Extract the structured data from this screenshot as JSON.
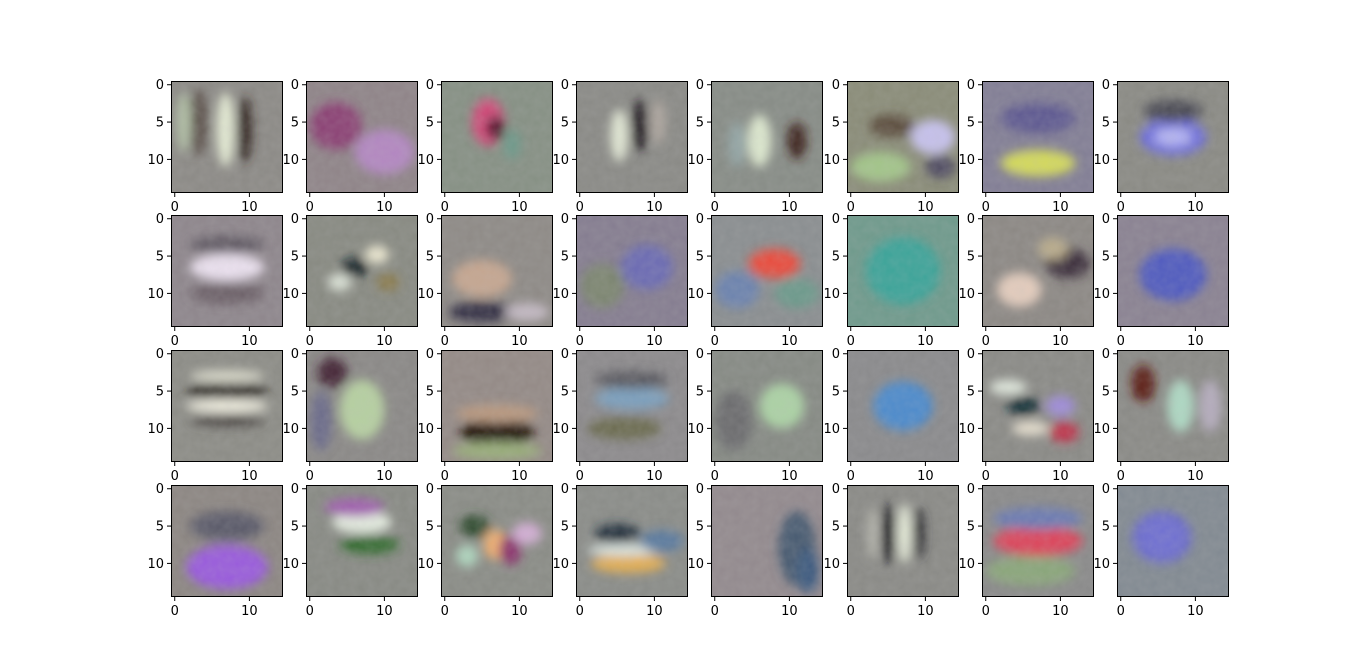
{
  "chart_data": {
    "type": "heatmap",
    "title": "",
    "xlabel": "",
    "ylabel": "",
    "grid": false,
    "layout": {
      "rows": 4,
      "cols": 8
    },
    "image_size": [
      15,
      15
    ],
    "xlim": [
      -0.5,
      14.5
    ],
    "ylim": [
      14.5,
      -0.5
    ],
    "x_ticks": [
      {
        "value": 0,
        "label": "0"
      },
      {
        "value": 10,
        "label": "10"
      }
    ],
    "y_ticks": [
      {
        "value": 0,
        "label": "0"
      },
      {
        "value": 5,
        "label": "5"
      },
      {
        "value": 10,
        "label": "10"
      }
    ],
    "colors": {
      "neutral_gray": "#8a8a8a",
      "axis": "#000000"
    },
    "panels": [
      {
        "row": 0,
        "col": 0,
        "bg": "#8c8a86",
        "blobs": [
          {
            "x": 6.8,
            "y": 6,
            "rx": 1.2,
            "ry": 5,
            "color": "#e9f0d8"
          },
          {
            "x": 9.4,
            "y": 6,
            "rx": 1.0,
            "ry": 4.5,
            "color": "#2e221e"
          },
          {
            "x": 3.2,
            "y": 5,
            "rx": 1.2,
            "ry": 4.5,
            "color": "#5b4f4a"
          },
          {
            "x": 1.2,
            "y": 5,
            "rx": 1,
            "ry": 4,
            "color": "#b3c2a6"
          }
        ]
      },
      {
        "row": 0,
        "col": 1,
        "bg": "#8f8488",
        "blobs": [
          {
            "x": 3.5,
            "y": 5.5,
            "rx": 3.5,
            "ry": 3.2,
            "color": "#8b3f74"
          },
          {
            "x": 10,
            "y": 9,
            "rx": 4,
            "ry": 3,
            "color": "#b488c4"
          }
        ]
      },
      {
        "row": 0,
        "col": 2,
        "bg": "#869084",
        "blobs": [
          {
            "x": 5.8,
            "y": 5,
            "rx": 2.2,
            "ry": 3.2,
            "color": "#d34a78"
          },
          {
            "x": 6.8,
            "y": 5.8,
            "rx": 1.2,
            "ry": 1.6,
            "color": "#4a0f24"
          },
          {
            "x": 9,
            "y": 8,
            "rx": 1.2,
            "ry": 2,
            "color": "#6d9a8a"
          }
        ]
      },
      {
        "row": 0,
        "col": 3,
        "bg": "#8a8a86",
        "blobs": [
          {
            "x": 8,
            "y": 5.5,
            "rx": 1.1,
            "ry": 3.5,
            "color": "#1f1420"
          },
          {
            "x": 5.3,
            "y": 6.8,
            "rx": 1.2,
            "ry": 3.5,
            "color": "#e6ecd8"
          },
          {
            "x": 10.5,
            "y": 5,
            "rx": 1,
            "ry": 3,
            "color": "#b0a8a0"
          }
        ]
      },
      {
        "row": 0,
        "col": 4,
        "bg": "#878c86",
        "blobs": [
          {
            "x": 6,
            "y": 7.5,
            "rx": 1.6,
            "ry": 3.5,
            "color": "#e0ecd2"
          },
          {
            "x": 11,
            "y": 7.5,
            "rx": 1.3,
            "ry": 2.5,
            "color": "#3a1a14"
          },
          {
            "x": 3,
            "y": 8,
            "rx": 1.2,
            "ry": 3,
            "color": "#94a6a6"
          }
        ]
      },
      {
        "row": 0,
        "col": 5,
        "bg": "#8a8c78",
        "blobs": [
          {
            "x": 11,
            "y": 7,
            "rx": 3,
            "ry": 2.3,
            "color": "#c9c4f2"
          },
          {
            "x": 5.5,
            "y": 5.5,
            "rx": 3,
            "ry": 1.5,
            "color": "#5a4a3a"
          },
          {
            "x": 4,
            "y": 11,
            "rx": 4,
            "ry": 2,
            "color": "#a4c88a"
          },
          {
            "x": 12,
            "y": 11,
            "rx": 2,
            "ry": 1.5,
            "color": "#4b4660"
          }
        ]
      },
      {
        "row": 0,
        "col": 6,
        "bg": "#827e95",
        "blobs": [
          {
            "x": 7,
            "y": 10.5,
            "rx": 5,
            "ry": 1.8,
            "color": "#d8de5a"
          },
          {
            "x": 7,
            "y": 4.5,
            "rx": 5,
            "ry": 2,
            "color": "#5d5690"
          }
        ]
      },
      {
        "row": 0,
        "col": 7,
        "bg": "#8a8a84",
        "blobs": [
          {
            "x": 7,
            "y": 7,
            "rx": 4.5,
            "ry": 2.5,
            "color": "#6e6ee0"
          },
          {
            "x": 7,
            "y": 7,
            "rx": 2.5,
            "ry": 1.2,
            "color": "#b8b8f4"
          },
          {
            "x": 7,
            "y": 3.5,
            "rx": 4,
            "ry": 1.5,
            "color": "#4a4a52"
          }
        ]
      },
      {
        "row": 1,
        "col": 0,
        "bg": "#8e868c",
        "blobs": [
          {
            "x": 7,
            "y": 6.5,
            "rx": 5,
            "ry": 1.8,
            "color": "#f0e6f4"
          },
          {
            "x": 7,
            "y": 3.5,
            "rx": 5,
            "ry": 1.2,
            "color": "#5f5a62"
          },
          {
            "x": 7,
            "y": 10,
            "rx": 5,
            "ry": 1.4,
            "color": "#6a5e66"
          }
        ]
      },
      {
        "row": 1,
        "col": 1,
        "bg": "#888a82",
        "blobs": [
          {
            "x": 6,
            "y": 6.5,
            "rx": 1.8,
            "ry": 1.3,
            "color": "#0d1a22"
          },
          {
            "x": 9,
            "y": 4.8,
            "rx": 1.6,
            "ry": 1.2,
            "color": "#f0ecd4"
          },
          {
            "x": 4,
            "y": 8.5,
            "rx": 1.6,
            "ry": 1.2,
            "color": "#dce4d8"
          },
          {
            "x": 10.5,
            "y": 8.5,
            "rx": 1.5,
            "ry": 1.2,
            "color": "#8a7a48"
          }
        ]
      },
      {
        "row": 1,
        "col": 2,
        "bg": "#8e8a86",
        "blobs": [
          {
            "x": 5,
            "y": 12.5,
            "rx": 4.5,
            "ry": 1.4,
            "color": "#2e2a40"
          },
          {
            "x": 5,
            "y": 8,
            "rx": 4,
            "ry": 2.5,
            "color": "#c8a890"
          },
          {
            "x": 11,
            "y": 12.5,
            "rx": 3,
            "ry": 1.2,
            "color": "#c6bcc6"
          }
        ]
      },
      {
        "row": 1,
        "col": 3,
        "bg": "#857d90",
        "blobs": [
          {
            "x": 9,
            "y": 6.5,
            "rx": 3.5,
            "ry": 3,
            "color": "#6a6ab4"
          },
          {
            "x": 3,
            "y": 9,
            "rx": 3,
            "ry": 3,
            "color": "#7c8670"
          }
        ]
      },
      {
        "row": 1,
        "col": 4,
        "bg": "#8a8e90",
        "blobs": [
          {
            "x": 8,
            "y": 6,
            "rx": 3.5,
            "ry": 2,
            "color": "#ee4a3a"
          },
          {
            "x": 3,
            "y": 9.5,
            "rx": 3,
            "ry": 2.5,
            "color": "#6a82b0"
          },
          {
            "x": 11,
            "y": 10,
            "rx": 3,
            "ry": 2,
            "color": "#6a9a8a"
          }
        ]
      },
      {
        "row": 1,
        "col": 5,
        "bg": "#6f9a8c",
        "blobs": [
          {
            "x": 7,
            "y": 7,
            "rx": 5,
            "ry": 4.5,
            "color": "#3aa49a"
          }
        ]
      },
      {
        "row": 1,
        "col": 6,
        "bg": "#8c8884",
        "blobs": [
          {
            "x": 4.5,
            "y": 9.5,
            "rx": 3,
            "ry": 2.3,
            "color": "#e8d0c0"
          },
          {
            "x": 11,
            "y": 6,
            "rx": 3,
            "ry": 2,
            "color": "#3a2a3a"
          },
          {
            "x": 9,
            "y": 4,
            "rx": 2,
            "ry": 1.5,
            "color": "#bcae8c"
          }
        ]
      },
      {
        "row": 1,
        "col": 7,
        "bg": "#8a8292",
        "blobs": [
          {
            "x": 7,
            "y": 7.5,
            "rx": 4.5,
            "ry": 3.5,
            "color": "#4e5ac2"
          }
        ]
      },
      {
        "row": 2,
        "col": 0,
        "bg": "#8c8c86",
        "blobs": [
          {
            "x": 7,
            "y": 5,
            "rx": 5.5,
            "ry": 1,
            "color": "#1a140e"
          },
          {
            "x": 7,
            "y": 7,
            "rx": 5.5,
            "ry": 0.9,
            "color": "#f4f2e4"
          },
          {
            "x": 7,
            "y": 3,
            "rx": 5,
            "ry": 0.8,
            "color": "#dcdccc"
          },
          {
            "x": 7,
            "y": 9,
            "rx": 5,
            "ry": 0.8,
            "color": "#4a4440"
          }
        ]
      },
      {
        "row": 2,
        "col": 1,
        "bg": "#8a8886",
        "blobs": [
          {
            "x": 3,
            "y": 2.5,
            "rx": 2,
            "ry": 2,
            "color": "#3e1e30"
          },
          {
            "x": 7,
            "y": 7.5,
            "rx": 3,
            "ry": 4,
            "color": "#b8d4a2"
          },
          {
            "x": 1.5,
            "y": 9,
            "rx": 1.5,
            "ry": 4,
            "color": "#6a6a8a"
          }
        ]
      },
      {
        "row": 2,
        "col": 2,
        "bg": "#948a86",
        "blobs": [
          {
            "x": 7,
            "y": 10.5,
            "rx": 5,
            "ry": 1.8,
            "color": "#1a0e06"
          },
          {
            "x": 7,
            "y": 8,
            "rx": 5.5,
            "ry": 1.2,
            "color": "#bc9a80"
          },
          {
            "x": 7,
            "y": 13,
            "rx": 6,
            "ry": 1.2,
            "color": "#9ab07a"
          }
        ]
      },
      {
        "row": 2,
        "col": 3,
        "bg": "#8c8a8c",
        "blobs": [
          {
            "x": 7,
            "y": 6,
            "rx": 5,
            "ry": 1.5,
            "color": "#7aa0c0"
          },
          {
            "x": 7,
            "y": 3.5,
            "rx": 5,
            "ry": 1.2,
            "color": "#5a5a60"
          },
          {
            "x": 6,
            "y": 10,
            "rx": 5,
            "ry": 1.5,
            "color": "#6a6a4e"
          }
        ]
      },
      {
        "row": 2,
        "col": 4,
        "bg": "#868a84",
        "blobs": [
          {
            "x": 9,
            "y": 7,
            "rx": 3,
            "ry": 3,
            "color": "#aed6a6"
          },
          {
            "x": 2.5,
            "y": 9,
            "rx": 2.5,
            "ry": 4,
            "color": "#6a6a6e"
          }
        ]
      },
      {
        "row": 2,
        "col": 5,
        "bg": "#8a8a8c",
        "blobs": [
          {
            "x": 7,
            "y": 7,
            "rx": 4,
            "ry": 3.3,
            "color": "#4a8ad0"
          }
        ]
      },
      {
        "row": 2,
        "col": 6,
        "bg": "#8a8a86",
        "blobs": [
          {
            "x": 5,
            "y": 7,
            "rx": 2.2,
            "ry": 1.3,
            "color": "#0a2a34"
          },
          {
            "x": 3,
            "y": 4.5,
            "rx": 2.5,
            "ry": 1,
            "color": "#e4ece0"
          },
          {
            "x": 10.5,
            "y": 10.5,
            "rx": 2,
            "ry": 1.4,
            "color": "#c2304a"
          },
          {
            "x": 10,
            "y": 7,
            "rx": 2,
            "ry": 1.4,
            "color": "#a08cdc"
          },
          {
            "x": 6,
            "y": 10,
            "rx": 2.5,
            "ry": 1,
            "color": "#e8e0d0"
          }
        ]
      },
      {
        "row": 2,
        "col": 7,
        "bg": "#8a8a86",
        "blobs": [
          {
            "x": 3,
            "y": 4,
            "rx": 1.6,
            "ry": 2.5,
            "color": "#5a1408"
          },
          {
            "x": 8,
            "y": 7,
            "rx": 1.8,
            "ry": 3.5,
            "color": "#b0dcc6"
          },
          {
            "x": 12,
            "y": 7,
            "rx": 1.5,
            "ry": 3.5,
            "color": "#b6aec0"
          }
        ]
      },
      {
        "row": 3,
        "col": 0,
        "bg": "#8c8682",
        "blobs": [
          {
            "x": 7,
            "y": 10.5,
            "rx": 5.5,
            "ry": 3,
            "color": "#9a5ae0"
          },
          {
            "x": 7,
            "y": 5,
            "rx": 5,
            "ry": 2,
            "color": "#5a5868"
          }
        ]
      },
      {
        "row": 3,
        "col": 1,
        "bg": "#888a84",
        "blobs": [
          {
            "x": 7,
            "y": 4.5,
            "rx": 4,
            "ry": 1.5,
            "color": "#e8f0e4"
          },
          {
            "x": 6,
            "y": 2.5,
            "rx": 4,
            "ry": 1.2,
            "color": "#a05ab0"
          },
          {
            "x": 8,
            "y": 7.5,
            "rx": 4,
            "ry": 1.3,
            "color": "#2e6a2a"
          }
        ]
      },
      {
        "row": 3,
        "col": 2,
        "bg": "#8a8c86",
        "blobs": [
          {
            "x": 6.8,
            "y": 7.5,
            "rx": 1.6,
            "ry": 2,
            "color": "#f4b070"
          },
          {
            "x": 8.8,
            "y": 8.2,
            "rx": 1.5,
            "ry": 2,
            "color": "#8a2a6a"
          },
          {
            "x": 4,
            "y": 5,
            "rx": 2,
            "ry": 1.5,
            "color": "#2a4a2a"
          },
          {
            "x": 11,
            "y": 6,
            "rx": 2,
            "ry": 1.5,
            "color": "#d6b0d8"
          },
          {
            "x": 3,
            "y": 9,
            "rx": 1.5,
            "ry": 1.5,
            "color": "#b0d8c0"
          }
        ]
      },
      {
        "row": 3,
        "col": 3,
        "bg": "#8a8c88",
        "blobs": [
          {
            "x": 6.5,
            "y": 10,
            "rx": 5,
            "ry": 1.3,
            "color": "#e8b050"
          },
          {
            "x": 5,
            "y": 6,
            "rx": 3,
            "ry": 1.3,
            "color": "#1a2a3a"
          },
          {
            "x": 6,
            "y": 8.2,
            "rx": 5,
            "ry": 0.8,
            "color": "#dce8e4"
          },
          {
            "x": 11,
            "y": 7,
            "rx": 3,
            "ry": 1.5,
            "color": "#5a7aa0"
          }
        ]
      },
      {
        "row": 3,
        "col": 4,
        "bg": "#938a8e",
        "blobs": [
          {
            "x": 11,
            "y": 8,
            "rx": 2.5,
            "ry": 5,
            "color": "#445a70"
          },
          {
            "x": 12.5,
            "y": 11,
            "rx": 1.5,
            "ry": 3,
            "color": "#3a5a80"
          }
        ]
      },
      {
        "row": 3,
        "col": 5,
        "bg": "#8a8a86",
        "blobs": [
          {
            "x": 5,
            "y": 6,
            "rx": 0.9,
            "ry": 4,
            "color": "#0e0a16"
          },
          {
            "x": 7.2,
            "y": 6,
            "rx": 0.9,
            "ry": 4,
            "color": "#eef4e0"
          },
          {
            "x": 9.2,
            "y": 6,
            "rx": 0.8,
            "ry": 3.5,
            "color": "#2a2a2e"
          },
          {
            "x": 3,
            "y": 6,
            "rx": 0.8,
            "ry": 3.5,
            "color": "#b6b6ae"
          }
        ]
      },
      {
        "row": 3,
        "col": 6,
        "bg": "#8a8a8a",
        "blobs": [
          {
            "x": 7,
            "y": 7,
            "rx": 6,
            "ry": 2,
            "color": "#e0405a"
          },
          {
            "x": 7,
            "y": 4,
            "rx": 6,
            "ry": 1.5,
            "color": "#6a7ab4"
          },
          {
            "x": 6,
            "y": 11,
            "rx": 6,
            "ry": 2,
            "color": "#8aa87a"
          }
        ]
      },
      {
        "row": 3,
        "col": 7,
        "bg": "#828a92",
        "blobs": [
          {
            "x": 5.5,
            "y": 6.5,
            "rx": 2.6,
            "ry": 2.3,
            "color": "#c8ccf8"
          },
          {
            "x": 5.5,
            "y": 6.5,
            "rx": 4,
            "ry": 3.5,
            "color": "#6a6ad0"
          }
        ]
      }
    ]
  }
}
